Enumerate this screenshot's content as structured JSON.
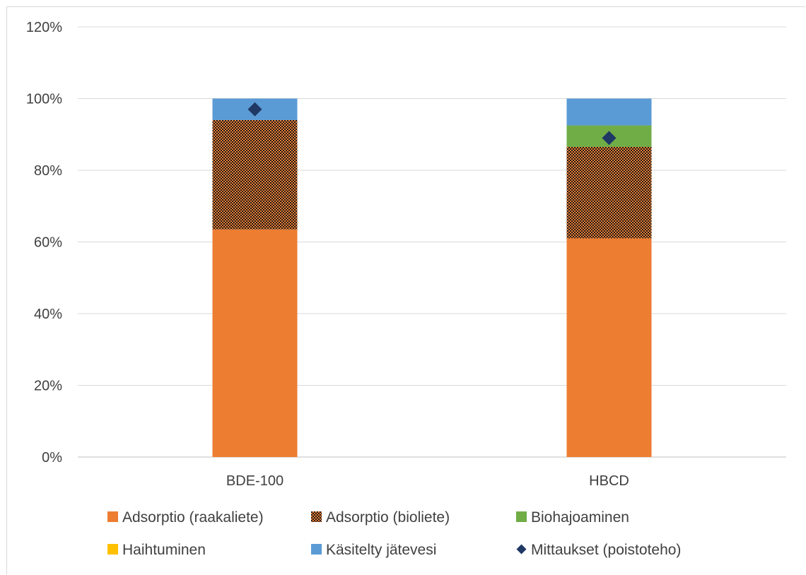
{
  "chart_data": {
    "type": "bar",
    "stacked": true,
    "categories": [
      "BDE-100",
      "HBCD"
    ],
    "series": [
      {
        "name": "Adsorptio (raakaliete)",
        "values": [
          63.5,
          61
        ],
        "color": "#ed7d31",
        "pattern": "solid"
      },
      {
        "name": "Adsorptio (bioliete)",
        "values": [
          30.5,
          25.5
        ],
        "color": "#ed7d31",
        "pattern": "checker"
      },
      {
        "name": "Biohajoaminen",
        "values": [
          0,
          6
        ],
        "color": "#70ad47",
        "pattern": "solid"
      },
      {
        "name": "Haihtuminen",
        "values": [
          0,
          0
        ],
        "color": "#ffc000",
        "pattern": "solid"
      },
      {
        "name": "Käsitelty jätevesi",
        "values": [
          6,
          7.5
        ],
        "color": "#5b9bd5",
        "pattern": "solid"
      }
    ],
    "markers": {
      "name": "Mittaukset (poistoteho)",
      "values": [
        97,
        89
      ],
      "color": "#1f3864",
      "shape": "diamond"
    },
    "ylim": [
      0,
      120
    ],
    "yticks": [
      "0%",
      "20%",
      "40%",
      "60%",
      "80%",
      "100%",
      "120%"
    ],
    "ytick_values": [
      0,
      20,
      40,
      60,
      80,
      100,
      120
    ],
    "grid": true,
    "legend_position": "bottom",
    "title": "",
    "xlabel": "",
    "ylabel": ""
  }
}
